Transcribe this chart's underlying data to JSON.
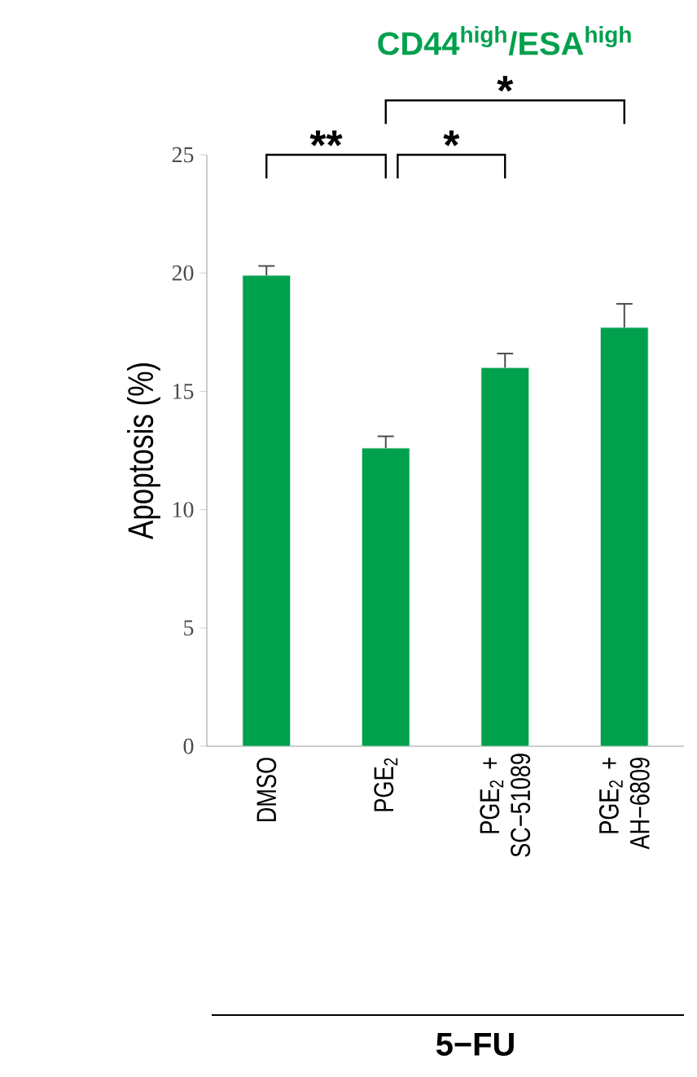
{
  "chart_data": {
    "type": "bar",
    "title": "CD44$^{high}$/ESA$^{high}$",
    "categories": [
      "DMSO",
      "PGE$_{2}$",
      "PGE$_{2}$ + SC−51089",
      "PGE$_{2}$ + AH−6809"
    ],
    "values": [
      19.9,
      12.6,
      16.0,
      17.7
    ],
    "errors": [
      0.4,
      0.5,
      0.6,
      1.0
    ],
    "color": "#00a04d",
    "ylabel": "Apoptosis (%)",
    "ylim": [
      0,
      25
    ],
    "yticks": [
      0,
      5,
      10,
      15,
      20,
      25
    ],
    "annotations": [
      "**",
      "*",
      "*",
      "5−FU"
    ],
    "grid": false
  }
}
